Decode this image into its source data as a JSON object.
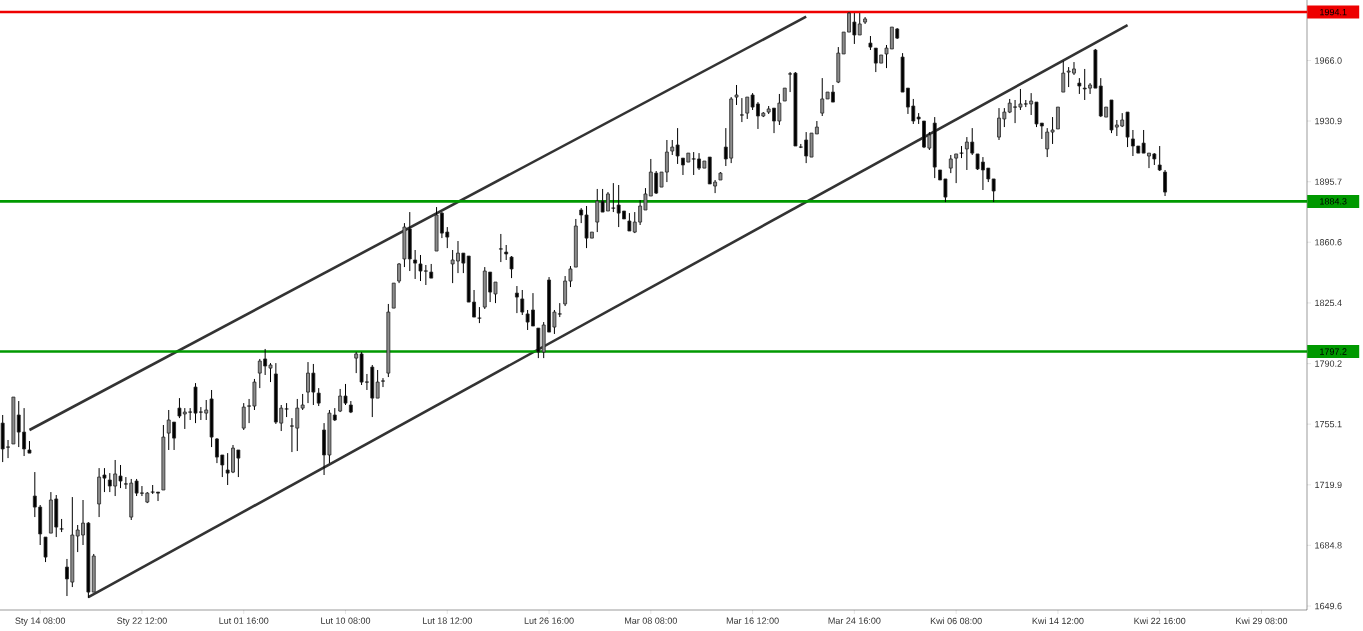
{
  "chart_data": {
    "type": "candlestick",
    "categories": [
      null,
      null,
      null,
      null,
      null,
      null,
      null,
      "Sty 14 08:00",
      null,
      null,
      null,
      null,
      null,
      null,
      null,
      null,
      null,
      null,
      null,
      null,
      null,
      null,
      null,
      null,
      null,
      null,
      "Sty 22 12:00",
      null,
      null,
      null,
      null,
      null,
      null,
      null,
      null,
      null,
      null,
      null,
      null,
      null,
      null,
      null,
      null,
      null,
      null,
      "Lut 01 16:00",
      null,
      null,
      null,
      null,
      null,
      null,
      null,
      null,
      null,
      null,
      null,
      null,
      null,
      null,
      null,
      null,
      null,
      null,
      "Lut 10 08:00",
      null,
      null,
      null,
      null,
      null,
      null,
      null,
      null,
      null,
      null,
      null,
      null,
      null,
      null,
      null,
      null,
      null,
      null,
      "Lut 18 12:00",
      null,
      null,
      null,
      null,
      null,
      null,
      null,
      null,
      null,
      null,
      null,
      null,
      null,
      null,
      null,
      null,
      null,
      null,
      "Lut 26 16:00",
      null,
      null,
      null,
      null,
      null,
      null,
      null,
      null,
      null,
      null,
      null,
      null,
      null,
      null,
      null,
      null,
      null,
      null,
      "Mar 08 08:00",
      null,
      null,
      null,
      null,
      null,
      null,
      null,
      null,
      null,
      null,
      null,
      null,
      null,
      null,
      null,
      null,
      null,
      null,
      "Mar 16 12:00",
      null,
      null,
      null,
      null,
      null,
      null,
      null,
      null,
      null,
      null,
      null,
      null,
      null,
      null,
      null,
      null,
      null,
      null,
      "Mar 24 16:00",
      null,
      null,
      null,
      null,
      null,
      null,
      null,
      null,
      null,
      null,
      null,
      null,
      null,
      null,
      null,
      null,
      null,
      null,
      "Kwi 06 08:00",
      null,
      null,
      null,
      null,
      null,
      null,
      null,
      null,
      null,
      null,
      null,
      null,
      null,
      null,
      null,
      null,
      null,
      null,
      "Kwi 14 12:00",
      null,
      null,
      null,
      null,
      null,
      null,
      null,
      null,
      null,
      null,
      null,
      null,
      null,
      null,
      null,
      null,
      null,
      null,
      "Kwi 22 16:00",
      null,
      null,
      null,
      null,
      null,
      null,
      null,
      null,
      null,
      null,
      null,
      null,
      null,
      null,
      null,
      null,
      null,
      null,
      "Kwi 29 08:00",
      null,
      null,
      null,
      null,
      null,
      null,
      null,
      null
    ],
    "ohlc": [
      [
        1755.7,
        1760.4,
        1733.1,
        1740.7
      ],
      [
        1741.8,
        1745.9,
        1735.4,
        1741.8
      ],
      [
        1743.6,
        1770.8,
        1743.6,
        1770.8
      ],
      [
        1760.4,
        1768.5,
        1741.8,
        1750.5
      ],
      [
        1750.5,
        1764.4,
        1736.6,
        1740.7
      ],
      [
        1740.1,
        1745.3,
        1738.3,
        1738.3
      ],
      [
        1713.4,
        1727.3,
        1701.2,
        1707.0
      ],
      [
        1707.0,
        1708.2,
        1685.0,
        1691.4
      ],
      [
        1689.6,
        1689.6,
        1675.1,
        1678.0
      ],
      [
        1691.9,
        1715.7,
        1691.9,
        1711.1
      ],
      [
        1711.7,
        1714.0,
        1689.6,
        1695.4
      ],
      [
        1694.3,
        1700.1,
        1692.5,
        1694.3
      ],
      [
        1672.2,
        1676.9,
        1655.4,
        1665.3
      ],
      [
        1663.5,
        1712.8,
        1660.6,
        1690.8
      ],
      [
        1690.2,
        1696.6,
        1680.9,
        1693.7
      ],
      [
        1690.8,
        1711.1,
        1685.0,
        1697.7
      ],
      [
        1697.7,
        1698.3,
        1654.2,
        1657.7
      ],
      [
        1657.7,
        1679.8,
        1657.7,
        1678.6
      ],
      [
        1708.8,
        1729.6,
        1701.2,
        1724.4
      ],
      [
        1725.6,
        1729.6,
        1715.7,
        1723.8
      ],
      [
        1722.7,
        1726.7,
        1715.7,
        1719.2
      ],
      [
        1719.2,
        1734.3,
        1713.4,
        1726.2
      ],
      [
        1725.0,
        1731.4,
        1718.0,
        1722.1
      ],
      [
        1720.4,
        1724.4,
        1717.5,
        1720.4
      ],
      [
        1701.2,
        1723.3,
        1699.5,
        1720.9
      ],
      [
        1722.1,
        1723.3,
        1713.4,
        1715.1
      ],
      [
        1715.1,
        1719.2,
        1713.4,
        1715.1
      ],
      [
        1709.9,
        1715.7,
        1709.3,
        1715.1
      ],
      [
        1715.7,
        1719.8,
        1714.6,
        1715.7
      ],
      [
        1715.7,
        1715.7,
        1710.5,
        1715.1
      ],
      [
        1716.9,
        1754.6,
        1716.9,
        1747.6
      ],
      [
        1749.9,
        1763.3,
        1740.1,
        1757.5
      ],
      [
        1756.3,
        1756.3,
        1740.1,
        1747.0
      ],
      [
        1764.4,
        1770.2,
        1758.6,
        1759.8
      ],
      [
        1761.0,
        1764.4,
        1752.3,
        1762.1
      ],
      [
        1762.1,
        1764.4,
        1757.5,
        1762.1
      ],
      [
        1776.6,
        1778.9,
        1755.7,
        1761.5
      ],
      [
        1762.1,
        1765.0,
        1757.5,
        1762.1
      ],
      [
        1761.5,
        1769.1,
        1757.5,
        1763.3
      ],
      [
        1769.7,
        1774.9,
        1741.8,
        1747.6
      ],
      [
        1746.5,
        1747.0,
        1732.5,
        1736.0
      ],
      [
        1737.2,
        1737.2,
        1724.4,
        1731.4
      ],
      [
        1728.5,
        1738.3,
        1719.8,
        1726.7
      ],
      [
        1727.3,
        1743.0,
        1726.7,
        1741.2
      ],
      [
        1740.1,
        1740.1,
        1724.4,
        1735.4
      ],
      [
        1752.8,
        1767.3,
        1751.7,
        1765.0
      ],
      [
        1765.6,
        1769.7,
        1755.7,
        1765.6
      ],
      [
        1765.6,
        1781.3,
        1763.3,
        1779.5
      ],
      [
        1784.7,
        1792.9,
        1776.0,
        1791.7
      ],
      [
        1792.9,
        1798.7,
        1783.6,
        1788.8
      ],
      [
        1787.6,
        1790.5,
        1779.5,
        1789.4
      ],
      [
        1784.2,
        1790.5,
        1755.2,
        1756.3
      ],
      [
        1755.7,
        1766.2,
        1751.1,
        1764.4
      ],
      [
        1763.9,
        1767.3,
        1759.2,
        1763.9
      ],
      [
        1754.0,
        1758.6,
        1738.9,
        1754.0
      ],
      [
        1752.8,
        1769.7,
        1739.5,
        1764.4
      ],
      [
        1764.4,
        1772.6,
        1763.3,
        1766.2
      ],
      [
        1773.7,
        1791.1,
        1767.3,
        1784.7
      ],
      [
        1784.7,
        1790.0,
        1766.2,
        1773.7
      ],
      [
        1773.1,
        1776.0,
        1765.6,
        1767.3
      ],
      [
        1751.7,
        1755.7,
        1725.6,
        1737.2
      ],
      [
        1737.2,
        1763.3,
        1732.5,
        1761.5
      ],
      [
        1760.4,
        1764.4,
        1756.9,
        1757.5
      ],
      [
        1762.7,
        1775.5,
        1762.1,
        1771.4
      ],
      [
        1771.4,
        1778.4,
        1766.2,
        1767.3
      ],
      [
        1766.2,
        1768.5,
        1761.5,
        1762.1
      ],
      [
        1793.4,
        1796.9,
        1784.7,
        1795.8
      ],
      [
        1795.8,
        1796.9,
        1777.8,
        1779.5
      ],
      [
        1779.5,
        1784.2,
        1774.9,
        1779.5
      ],
      [
        1788.2,
        1789.4,
        1759.2,
        1770.2
      ],
      [
        1770.2,
        1786.5,
        1770.2,
        1779.5
      ],
      [
        1780.1,
        1781.8,
        1776.6,
        1780.1
      ],
      [
        1784.7,
        1824.8,
        1782.4,
        1820.1
      ],
      [
        1822.4,
        1836.9,
        1822.4,
        1836.9
      ],
      [
        1838.1,
        1848.5,
        1836.9,
        1848.0
      ],
      [
        1850.9,
        1871.7,
        1846.2,
        1869.4
      ],
      [
        1868.3,
        1878.1,
        1843.9,
        1850.9
      ],
      [
        1850.3,
        1856.1,
        1839.3,
        1848.5
      ],
      [
        1848.0,
        1853.2,
        1838.1,
        1843.9
      ],
      [
        1843.9,
        1847.4,
        1835.8,
        1843.9
      ],
      [
        1843.3,
        1848.0,
        1839.8,
        1839.8
      ],
      [
        1855.5,
        1881.0,
        1855.5,
        1876.4
      ],
      [
        1877.5,
        1878.1,
        1863.0,
        1865.9
      ],
      [
        1866.5,
        1869.4,
        1857.2,
        1863.6
      ],
      [
        1848.0,
        1856.1,
        1836.9,
        1850.3
      ],
      [
        1849.7,
        1861.3,
        1842.7,
        1854.3
      ],
      [
        1854.3,
        1854.3,
        1842.7,
        1848.5
      ],
      [
        1852.6,
        1852.6,
        1825.9,
        1825.9
      ],
      [
        1825.9,
        1832.9,
        1817.2,
        1817.2
      ],
      [
        1816.6,
        1823.0,
        1813.7,
        1816.6
      ],
      [
        1823.0,
        1846.2,
        1821.9,
        1843.9
      ],
      [
        1843.3,
        1843.3,
        1825.9,
        1831.7
      ],
      [
        1830.6,
        1837.5,
        1825.3,
        1837.5
      ],
      [
        1856.7,
        1865.4,
        1849.1,
        1856.7
      ],
      [
        1854.9,
        1859.0,
        1850.3,
        1853.8
      ],
      [
        1852.0,
        1852.6,
        1839.8,
        1845.1
      ],
      [
        1831.1,
        1835.2,
        1819.5,
        1828.8
      ],
      [
        1827.7,
        1832.9,
        1818.4,
        1820.1
      ],
      [
        1819.0,
        1821.3,
        1809.7,
        1814.3
      ],
      [
        1821.3,
        1831.1,
        1812.0,
        1812.0
      ],
      [
        1810.8,
        1810.8,
        1793.4,
        1796.9
      ],
      [
        1796.9,
        1814.3,
        1793.4,
        1812.6
      ],
      [
        1838.7,
        1840.4,
        1808.5,
        1808.5
      ],
      [
        1811.4,
        1821.3,
        1807.4,
        1820.1
      ],
      [
        1819.0,
        1825.3,
        1817.2,
        1819.0
      ],
      [
        1824.8,
        1841.0,
        1823.6,
        1838.1
      ],
      [
        1838.1,
        1846.8,
        1834.6,
        1845.1
      ],
      [
        1846.2,
        1874.1,
        1846.2,
        1870.0
      ],
      [
        1879.3,
        1880.4,
        1871.7,
        1876.4
      ],
      [
        1876.4,
        1881.6,
        1857.2,
        1863.0
      ],
      [
        1863.0,
        1866.5,
        1863.0,
        1866.5
      ],
      [
        1872.3,
        1891.5,
        1866.5,
        1884.5
      ],
      [
        1884.5,
        1891.5,
        1878.1,
        1878.1
      ],
      [
        1878.7,
        1889.7,
        1878.7,
        1888.6
      ],
      [
        1880.4,
        1894.9,
        1878.1,
        1880.4
      ],
      [
        1882.2,
        1893.8,
        1869.4,
        1877.5
      ],
      [
        1878.7,
        1878.7,
        1874.1,
        1874.1
      ],
      [
        1872.9,
        1877.5,
        1867.1,
        1867.1
      ],
      [
        1866.5,
        1878.1,
        1865.9,
        1872.3
      ],
      [
        1872.3,
        1885.1,
        1870.6,
        1881.6
      ],
      [
        1879.3,
        1892.0,
        1879.3,
        1888.6
      ],
      [
        1887.4,
        1908.9,
        1887.4,
        1901.3
      ],
      [
        1900.7,
        1901.9,
        1888.6,
        1889.1
      ],
      [
        1892.6,
        1901.3,
        1892.6,
        1901.3
      ],
      [
        1901.3,
        1919.9,
        1895.5,
        1912.9
      ],
      [
        1913.5,
        1919.9,
        1911.2,
        1915.8
      ],
      [
        1917.0,
        1926.8,
        1906.0,
        1910.6
      ],
      [
        1909.4,
        1909.4,
        1899.6,
        1905.4
      ],
      [
        1907.1,
        1912.3,
        1907.1,
        1912.3
      ],
      [
        1908.9,
        1912.9,
        1899.6,
        1908.9
      ],
      [
        1908.9,
        1912.3,
        1902.5,
        1903.6
      ],
      [
        1903.6,
        1907.7,
        1903.6,
        1907.7
      ],
      [
        1910.0,
        1910.0,
        1894.4,
        1894.4
      ],
      [
        1893.2,
        1896.7,
        1889.1,
        1895.5
      ],
      [
        1896.7,
        1901.3,
        1896.7,
        1900.7
      ],
      [
        1915.8,
        1926.8,
        1904.8,
        1908.9
      ],
      [
        1909.4,
        1944.8,
        1906.5,
        1943.7
      ],
      [
        1944.8,
        1951.8,
        1940.2,
        1946.0
      ],
      [
        1934.4,
        1944.2,
        1930.3,
        1934.4
      ],
      [
        1935.5,
        1944.8,
        1932.1,
        1944.8
      ],
      [
        1946.0,
        1947.1,
        1937.3,
        1939.0
      ],
      [
        1940.8,
        1941.9,
        1926.3,
        1933.8
      ],
      [
        1933.8,
        1936.1,
        1933.2,
        1935.5
      ],
      [
        1936.1,
        1939.6,
        1935.0,
        1937.9
      ],
      [
        1938.4,
        1938.4,
        1923.9,
        1930.9
      ],
      [
        1930.9,
        1946.6,
        1928.6,
        1941.3
      ],
      [
        1942.5,
        1950.0,
        1942.5,
        1950.0
      ],
      [
        1958.2,
        1959.3,
        1947.7,
        1958.2
      ],
      [
        1958.7,
        1959.3,
        1916.4,
        1916.4
      ],
      [
        1915.8,
        1917.6,
        1915.2,
        1915.8
      ],
      [
        1919.9,
        1924.5,
        1906.5,
        1910.6
      ],
      [
        1910.0,
        1923.9,
        1910.0,
        1923.9
      ],
      [
        1923.4,
        1930.9,
        1923.4,
        1927.4
      ],
      [
        1935.5,
        1955.8,
        1933.8,
        1943.7
      ],
      [
        1943.7,
        1947.7,
        1943.7,
        1947.7
      ],
      [
        1947.7,
        1951.8,
        1941.9,
        1941.9
      ],
      [
        1953.5,
        1973.8,
        1952.9,
        1970.3
      ],
      [
        1969.8,
        1982.5,
        1969.8,
        1982.5
      ],
      [
        1982.5,
        1994.1,
        1982.5,
        1993.5
      ],
      [
        1988.3,
        1993.5,
        1975.6,
        1980.8
      ],
      [
        1980.8,
        1993.5,
        1980.8,
        1987.2
      ],
      [
        1988.3,
        1991.2,
        1987.2,
        1990.1
      ],
      [
        1976.1,
        1980.2,
        1972.1,
        1973.8
      ],
      [
        1973.2,
        1973.2,
        1959.3,
        1964.5
      ],
      [
        1964.5,
        1969.2,
        1964.5,
        1969.2
      ],
      [
        1969.8,
        1975.0,
        1961.6,
        1973.2
      ],
      [
        1972.7,
        1985.4,
        1972.7,
        1985.4
      ],
      [
        1984.3,
        1984.8,
        1978.5,
        1979.0
      ],
      [
        1968.0,
        1970.3,
        1947.7,
        1947.7
      ],
      [
        1950.0,
        1950.0,
        1935.0,
        1939.0
      ],
      [
        1939.6,
        1943.7,
        1929.2,
        1930.9
      ],
      [
        1933.2,
        1935.5,
        1929.2,
        1932.1
      ],
      [
        1930.9,
        1930.9,
        1915.2,
        1915.8
      ],
      [
        1915.2,
        1924.5,
        1914.1,
        1922.8
      ],
      [
        1929.7,
        1933.2,
        1897.8,
        1904.2
      ],
      [
        1902.5,
        1902.5,
        1896.7,
        1896.7
      ],
      [
        1897.3,
        1897.3,
        1883.9,
        1886.8
      ],
      [
        1903.6,
        1911.2,
        1900.7,
        1908.9
      ],
      [
        1909.4,
        1911.8,
        1894.9,
        1911.8
      ],
      [
        1912.3,
        1916.4,
        1909.4,
        1912.3
      ],
      [
        1914.7,
        1921.6,
        1902.5,
        1918.7
      ],
      [
        1918.7,
        1926.8,
        1911.2,
        1912.3
      ],
      [
        1911.8,
        1911.8,
        1902.5,
        1903.1
      ],
      [
        1907.1,
        1910.0,
        1890.9,
        1902.5
      ],
      [
        1903.6,
        1903.6,
        1895.5,
        1897.3
      ],
      [
        1897.3,
        1897.3,
        1883.9,
        1890.3
      ],
      [
        1921.6,
        1938.4,
        1919.9,
        1932.6
      ],
      [
        1932.1,
        1938.4,
        1927.4,
        1936.1
      ],
      [
        1936.1,
        1943.7,
        1935.5,
        1941.3
      ],
      [
        1939.0,
        1943.1,
        1929.7,
        1939.0
      ],
      [
        1939.0,
        1949.5,
        1937.3,
        1940.8
      ],
      [
        1940.8,
        1943.1,
        1939.0,
        1940.8
      ],
      [
        1940.8,
        1947.1,
        1934.4,
        1942.5
      ],
      [
        1941.9,
        1941.9,
        1927.4,
        1929.2
      ],
      [
        1929.7,
        1929.7,
        1920.5,
        1928.0
      ],
      [
        1914.7,
        1926.8,
        1910.0,
        1924.5
      ],
      [
        1924.5,
        1933.2,
        1917.6,
        1925.7
      ],
      [
        1926.3,
        1939.0,
        1926.3,
        1939.0
      ],
      [
        1947.7,
        1965.7,
        1947.7,
        1958.7
      ],
      [
        1959.3,
        1962.2,
        1950.6,
        1959.9
      ],
      [
        1958.7,
        1965.1,
        1957.6,
        1961.1
      ],
      [
        1952.9,
        1955.8,
        1946.6,
        1951.2
      ],
      [
        1950.0,
        1961.1,
        1943.1,
        1949.5
      ],
      [
        1950.0,
        1952.9,
        1946.6,
        1951.8
      ],
      [
        1972.1,
        1972.7,
        1950.0,
        1950.0
      ],
      [
        1951.2,
        1955.8,
        1933.2,
        1933.8
      ],
      [
        1933.2,
        1939.0,
        1933.2,
        1939.0
      ],
      [
        1943.1,
        1943.1,
        1923.9,
        1925.7
      ],
      [
        1927.4,
        1931.5,
        1922.2,
        1928.6
      ],
      [
        1928.0,
        1935.5,
        1927.4,
        1931.5
      ],
      [
        1936.1,
        1936.1,
        1915.8,
        1921.6
      ],
      [
        1920.5,
        1925.7,
        1910.6,
        1916.4
      ],
      [
        1916.4,
        1916.4,
        1912.3,
        1912.3
      ],
      [
        1918.1,
        1925.7,
        1912.3,
        1912.3
      ],
      [
        1910.6,
        1912.3,
        1903.6,
        1912.3
      ],
      [
        1911.8,
        1912.3,
        1905.4,
        1908.9
      ],
      [
        1905.4,
        1916.4,
        1901.9,
        1902.5
      ],
      [
        1901.3,
        1902.5,
        1887.4,
        1889.7
      ],
      null,
      null,
      null,
      null,
      null,
      null,
      null,
      null,
      null,
      null,
      null,
      null,
      null,
      null,
      null,
      null,
      null,
      null,
      null,
      null,
      null,
      null,
      null,
      null,
      null,
      null
    ],
    "series": [
      {
        "type": "line",
        "color": "#333333",
        "values": [
          null,
          null,
          null,
          null,
          null,
          1751.7,
          null,
          null,
          null,
          null,
          null,
          null,
          null,
          null,
          null,
          null,
          null,
          null,
          null,
          null,
          null,
          null,
          null,
          null,
          null,
          null,
          null,
          null,
          null,
          null,
          null,
          null,
          null,
          null,
          null,
          null,
          null,
          null,
          null,
          null,
          null,
          null,
          null,
          null,
          null,
          null,
          null,
          null,
          null,
          null,
          null,
          null,
          null,
          null,
          null,
          null,
          null,
          null,
          null,
          null,
          null,
          null,
          null,
          null,
          null,
          null,
          null,
          null,
          null,
          null,
          null,
          null,
          null,
          null,
          null,
          null,
          null,
          null,
          null,
          null,
          null,
          null,
          null,
          null,
          null,
          null,
          null,
          null,
          null,
          null,
          null,
          null,
          null,
          null,
          null,
          null,
          null,
          null,
          null,
          null,
          null,
          null,
          null,
          null,
          null,
          null,
          null,
          null,
          null,
          null,
          null,
          null,
          null,
          null,
          null,
          null,
          null,
          null,
          null,
          null,
          null,
          null,
          null,
          null,
          null,
          null,
          null,
          null,
          null,
          null,
          null,
          null,
          null,
          null,
          null,
          null,
          null,
          null,
          null,
          null,
          null,
          null,
          null,
          null,
          null,
          null,
          null,
          null,
          null,
          null,
          1991.4,
          null,
          null,
          null,
          null,
          null,
          null,
          null,
          null,
          null,
          null,
          null,
          null,
          null,
          null,
          null,
          null,
          null,
          null,
          null,
          null,
          null,
          null,
          null,
          null,
          null,
          null,
          null,
          null,
          null,
          null,
          null,
          null,
          null,
          null,
          null,
          null,
          null,
          null,
          null,
          null,
          null,
          null,
          null,
          null,
          null,
          null,
          null,
          null,
          null,
          null,
          null,
          null,
          null,
          null,
          null,
          null,
          null,
          null,
          null,
          null,
          null,
          null,
          null,
          null,
          null,
          null,
          null,
          null,
          null,
          null,
          null,
          null,
          null,
          null,
          null,
          null,
          null,
          null,
          null,
          null,
          null,
          null,
          null,
          null,
          null,
          null,
          null,
          null,
          null,
          null,
          null,
          null,
          null
        ]
      },
      {
        "type": "line",
        "color": "#333333",
        "values": [
          null,
          null,
          null,
          null,
          null,
          null,
          null,
          null,
          null,
          null,
          null,
          null,
          null,
          null,
          null,
          null,
          1654.8,
          null,
          null,
          null,
          null,
          null,
          null,
          null,
          null,
          null,
          null,
          null,
          null,
          null,
          null,
          null,
          null,
          null,
          null,
          null,
          null,
          null,
          null,
          null,
          null,
          null,
          null,
          null,
          null,
          null,
          null,
          null,
          null,
          null,
          null,
          null,
          null,
          null,
          null,
          null,
          null,
          null,
          null,
          null,
          null,
          null,
          null,
          null,
          null,
          null,
          null,
          null,
          null,
          null,
          null,
          null,
          null,
          null,
          null,
          null,
          null,
          null,
          null,
          null,
          null,
          null,
          null,
          null,
          null,
          null,
          null,
          null,
          null,
          null,
          null,
          null,
          null,
          null,
          null,
          null,
          null,
          null,
          null,
          null,
          null,
          null,
          null,
          null,
          null,
          null,
          null,
          null,
          null,
          null,
          null,
          null,
          null,
          null,
          null,
          null,
          null,
          null,
          null,
          null,
          null,
          null,
          null,
          null,
          null,
          null,
          null,
          null,
          null,
          null,
          null,
          null,
          null,
          null,
          null,
          null,
          null,
          null,
          null,
          null,
          null,
          null,
          null,
          null,
          null,
          null,
          null,
          null,
          null,
          null,
          null,
          null,
          null,
          null,
          null,
          null,
          null,
          null,
          null,
          null,
          null,
          null,
          null,
          null,
          null,
          null,
          null,
          null,
          null,
          null,
          null,
          null,
          null,
          null,
          null,
          null,
          null,
          null,
          null,
          null,
          null,
          null,
          null,
          null,
          null,
          null,
          null,
          null,
          null,
          null,
          null,
          null,
          null,
          null,
          null,
          null,
          null,
          null,
          null,
          null,
          null,
          null,
          null,
          null,
          null,
          null,
          null,
          null,
          null,
          null,
          1986.5,
          null,
          null,
          null,
          null,
          null,
          null,
          null,
          null,
          null,
          null,
          null,
          null,
          null,
          null,
          null,
          null,
          null,
          null,
          null,
          null,
          null,
          null,
          null,
          null,
          null,
          null,
          null,
          null,
          null,
          null,
          null,
          null,
          null
        ]
      }
    ],
    "ref_lines": [
      {
        "axis": "y",
        "value": 1994.1,
        "label": "1994.1",
        "color": "#ee0000"
      },
      {
        "axis": "y",
        "value": 1884.3,
        "label": "1884.3",
        "color": "#009900"
      },
      {
        "axis": "y",
        "value": 1797.2,
        "label": "1797.2",
        "color": "#009900"
      }
    ],
    "ylim": [
      1647.3,
      2001.1
    ],
    "yticks": [
      1649.6,
      1684.8,
      1719.9,
      1755.1,
      1790.2,
      1825.4,
      1860.6,
      1895.7,
      1930.9,
      {
        "value": 1966.0,
        "label": "1966.0"
      }
    ]
  }
}
